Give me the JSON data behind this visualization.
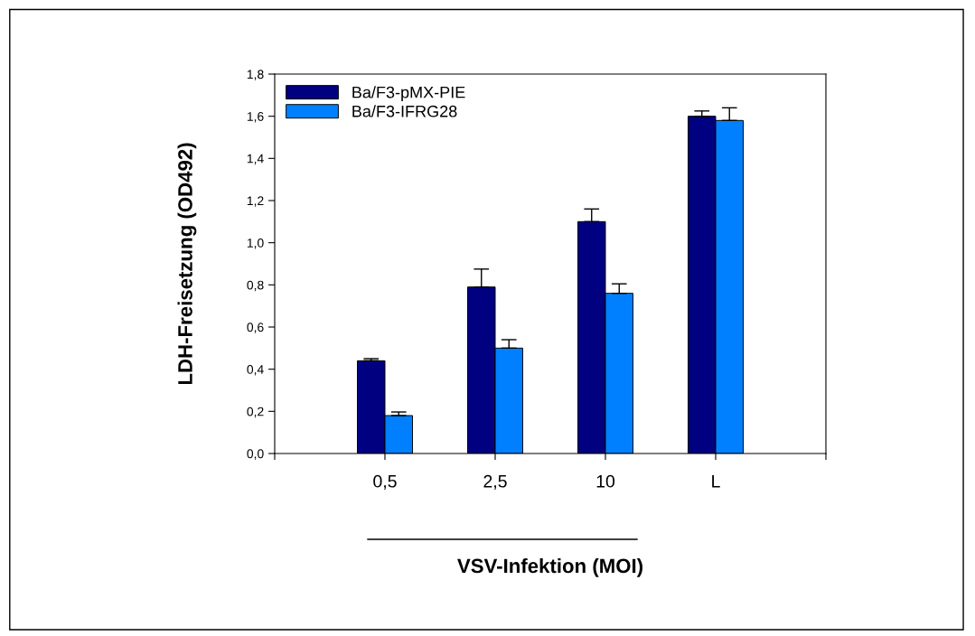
{
  "chart_data": {
    "type": "bar",
    "xlabel": "VSV-Infektion (MOI)",
    "ylabel": "LDH-Freisetzung (OD492)",
    "categories": [
      "0,5",
      "2,5",
      "10",
      "L"
    ],
    "series": [
      {
        "name": "Ba/F3-pMX-PIE",
        "color": "#000080",
        "values": [
          0.44,
          0.79,
          1.1,
          1.6
        ],
        "errors": [
          0.01,
          0.085,
          0.06,
          0.025
        ]
      },
      {
        "name": "Ba/F3-IFRG28",
        "color": "#0080ff",
        "values": [
          0.18,
          0.5,
          0.76,
          1.58
        ],
        "errors": [
          0.017,
          0.04,
          0.045,
          0.06
        ]
      }
    ],
    "ylim": [
      0,
      1.8
    ],
    "yticks": [
      {
        "value": 0,
        "label": "0,0"
      },
      {
        "value": 0.2,
        "label": "0,2"
      },
      {
        "value": 0.4,
        "label": "0,4"
      },
      {
        "value": 0.6,
        "label": "0,6"
      },
      {
        "value": 0.8,
        "label": "0,8"
      },
      {
        "value": 1.0,
        "label": "1,0"
      },
      {
        "value": 1.2,
        "label": "1,2"
      },
      {
        "value": 1.4,
        "label": "1,4"
      },
      {
        "value": 1.6,
        "label": "1,6"
      },
      {
        "value": 1.8,
        "label": "1,8"
      }
    ],
    "grid": false,
    "legend": "top left"
  }
}
